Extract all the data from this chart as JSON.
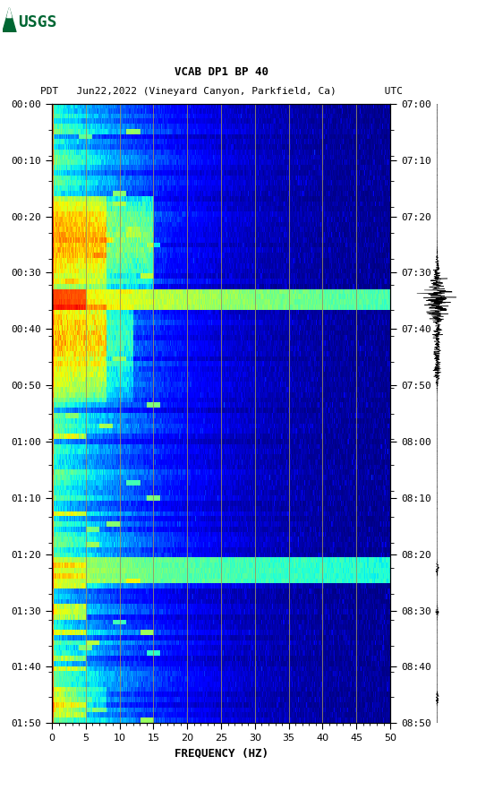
{
  "title_line1": "VCAB DP1 BP 40",
  "title_line2": "PDT   Jun22,2022 (Vineyard Canyon, Parkfield, Ca)        UTC",
  "xlabel": "FREQUENCY (HZ)",
  "freq_min": 0,
  "freq_max": 50,
  "freq_ticks": [
    0,
    5,
    10,
    15,
    20,
    25,
    30,
    35,
    40,
    45,
    50
  ],
  "time_left_labels": [
    "00:00",
    "00:10",
    "00:20",
    "00:30",
    "00:40",
    "00:50",
    "01:00",
    "01:10",
    "01:20",
    "01:30",
    "01:40",
    "01:50"
  ],
  "time_right_labels": [
    "07:00",
    "07:10",
    "07:20",
    "07:30",
    "07:40",
    "07:50",
    "08:00",
    "08:10",
    "08:20",
    "08:30",
    "08:40",
    "08:50"
  ],
  "n_time_steps": 120,
  "n_freq_steps": 500,
  "bg_color": "white",
  "grid_color": "#9A9060",
  "grid_alpha": 0.85,
  "vert_grid_freqs": [
    5,
    10,
    15,
    20,
    25,
    30,
    35,
    40,
    45
  ],
  "colormap": "jet",
  "fig_width": 5.52,
  "fig_height": 8.92
}
